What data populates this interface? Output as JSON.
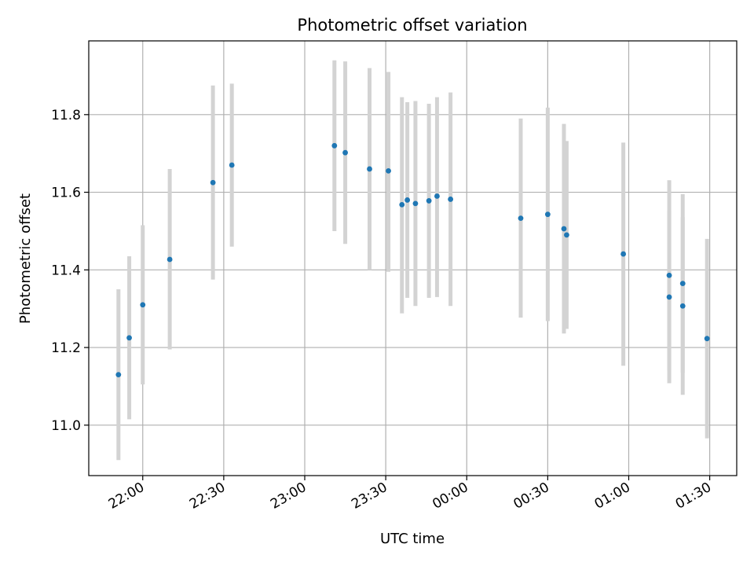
{
  "chart_data": {
    "type": "scatter",
    "title": "Photometric offset variation",
    "xlabel": "UTC time",
    "ylabel": "Photometric offset",
    "x_unit": "UTC HH:MM (times after 00:00 are on the following day)",
    "xlim": [
      "21:40",
      "01:40"
    ],
    "ylim": [
      10.87,
      11.99
    ],
    "x_ticks": [
      "22:00",
      "22:30",
      "23:00",
      "23:30",
      "00:00",
      "00:30",
      "01:00",
      "01:30"
    ],
    "y_ticks": [
      11.0,
      11.2,
      11.4,
      11.6,
      11.8
    ],
    "y_tick_labels": [
      "11.0",
      "11.2",
      "11.4",
      "11.6",
      "11.8"
    ],
    "grid": true,
    "colors": {
      "point": "#1f77b4",
      "errorbar": "#d3d3d3",
      "grid": "#b0b0b0"
    },
    "series": [
      {
        "points": [
          {
            "x": "21:51",
            "y": 11.13,
            "ylo": 10.91,
            "yhi": 11.35
          },
          {
            "x": "21:55",
            "y": 11.225,
            "ylo": 11.015,
            "yhi": 11.435
          },
          {
            "x": "22:00",
            "y": 11.31,
            "ylo": 11.105,
            "yhi": 11.515
          },
          {
            "x": "22:10",
            "y": 11.427,
            "ylo": 11.195,
            "yhi": 11.66
          },
          {
            "x": "22:26",
            "y": 11.625,
            "ylo": 11.375,
            "yhi": 11.875
          },
          {
            "x": "22:33",
            "y": 11.67,
            "ylo": 11.46,
            "yhi": 11.88
          },
          {
            "x": "23:11",
            "y": 11.72,
            "ylo": 11.5,
            "yhi": 11.94
          },
          {
            "x": "23:15",
            "y": 11.702,
            "ylo": 11.467,
            "yhi": 11.937
          },
          {
            "x": "23:24",
            "y": 11.66,
            "ylo": 11.4,
            "yhi": 11.92
          },
          {
            "x": "23:31",
            "y": 11.655,
            "ylo": 11.395,
            "yhi": 11.91
          },
          {
            "x": "23:36",
            "y": 11.568,
            "ylo": 11.288,
            "yhi": 11.845
          },
          {
            "x": "23:38",
            "y": 11.58,
            "ylo": 11.328,
            "yhi": 11.832
          },
          {
            "x": "23:41",
            "y": 11.571,
            "ylo": 11.307,
            "yhi": 11.835
          },
          {
            "x": "23:46",
            "y": 11.578,
            "ylo": 11.328,
            "yhi": 11.828
          },
          {
            "x": "23:49",
            "y": 11.59,
            "ylo": 11.33,
            "yhi": 11.845
          },
          {
            "x": "23:54",
            "y": 11.582,
            "ylo": 11.307,
            "yhi": 11.857
          },
          {
            "x": "00:20",
            "y": 11.533,
            "ylo": 11.277,
            "yhi": 11.79
          },
          {
            "x": "00:30",
            "y": 11.543,
            "ylo": 11.268,
            "yhi": 11.818
          },
          {
            "x": "00:36",
            "y": 11.506,
            "ylo": 11.236,
            "yhi": 11.776
          },
          {
            "x": "00:37",
            "y": 11.49,
            "ylo": 11.248,
            "yhi": 11.732
          },
          {
            "x": "00:58",
            "y": 11.441,
            "ylo": 11.153,
            "yhi": 11.728
          },
          {
            "x": "01:15",
            "y": 11.386,
            "ylo": 11.141,
            "yhi": 11.631
          },
          {
            "x": "01:15",
            "y": 11.33,
            "ylo": 11.108,
            "yhi": 11.552
          },
          {
            "x": "01:20",
            "y": 11.365,
            "ylo": 11.135,
            "yhi": 11.595
          },
          {
            "x": "01:20",
            "y": 11.307,
            "ylo": 11.078,
            "yhi": 11.536
          },
          {
            "x": "01:29",
            "y": 11.223,
            "ylo": 10.966,
            "yhi": 11.48
          }
        ]
      }
    ]
  }
}
